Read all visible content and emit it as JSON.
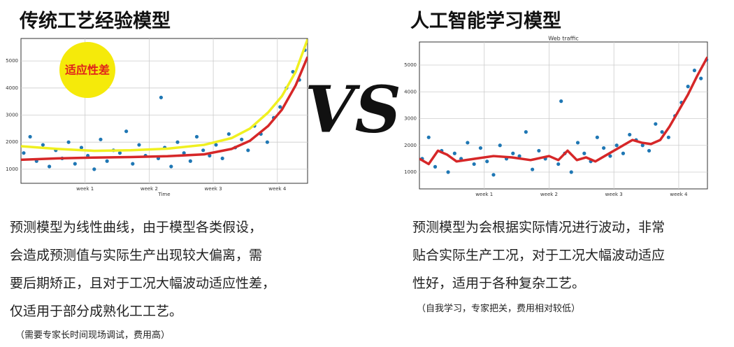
{
  "left": {
    "title": "传统工艺经验模型",
    "badge": "适应性差",
    "description": [
      "预测模型为线性曲线，由于模型各类假设，",
      "会造成预测值与实际生产出现较大偏离，需",
      "要后期矫正，且对于工况大幅波动适应性差，",
      "仅适用于部分成熟化工工艺。"
    ],
    "note": "（需要专家长时间现场调试，费用高）"
  },
  "vs": "VS",
  "right": {
    "title": "人工智能学习模型",
    "description": [
      "预测模型为会根据实际情况进行波动，非常",
      "贴合实际生产工况，对于工况大幅波动适应",
      "性好，适用于各种复杂工艺。"
    ],
    "note": "（自我学习，专家把关，费用相对较低）"
  },
  "chart_data": [
    {
      "type": "scatter",
      "xlabel": "Time",
      "grid": true,
      "xlim": [
        0,
        31.3
      ],
      "ylim": [
        480,
        5830
      ],
      "xticks": [
        {
          "value": 7,
          "label": "week 1"
        },
        {
          "value": 14,
          "label": "week 2"
        },
        {
          "value": 21,
          "label": "week 3"
        },
        {
          "value": 28,
          "label": "week 4"
        }
      ],
      "yticks": [
        1000,
        2000,
        3000,
        4000,
        5000
      ],
      "series": [
        {
          "mode": "markers",
          "color": "#1f77b4",
          "x": [
            0.3,
            1,
            1.7,
            2.4,
            3.1,
            3.8,
            4.5,
            5.2,
            5.9,
            6.6,
            7.3,
            8,
            8.7,
            9.4,
            10.1,
            10.8,
            11.5,
            12.2,
            12.9,
            13.6,
            15.3,
            15,
            15.7,
            16.4,
            17.1,
            17.8,
            18.5,
            19.2,
            19.9,
            20.6,
            21.3,
            22,
            22.7,
            23.4,
            24.1,
            24.8,
            25.5,
            26.2,
            26.9,
            27.6,
            28.3,
            29,
            29.7,
            30.4,
            31
          ],
          "values": [
            1600,
            2200,
            1300,
            1900,
            1100,
            1700,
            1400,
            2000,
            1200,
            1800,
            1500,
            1000,
            2100,
            1300,
            1700,
            1600,
            2400,
            1200,
            1900,
            1500,
            3650,
            1400,
            1800,
            1100,
            2000,
            1600,
            1300,
            2200,
            1700,
            1500,
            1900,
            1400,
            2300,
            1800,
            2100,
            1700,
            2600,
            2300,
            2000,
            2900,
            3300,
            4000,
            4600,
            4300,
            5400
          ]
        },
        {
          "mode": "line",
          "color": "#f0f020",
          "x": [
            0,
            4,
            8,
            12,
            16,
            20,
            23,
            25,
            27,
            28.5,
            30,
            31.3
          ],
          "values": [
            1850,
            1750,
            1680,
            1700,
            1760,
            1900,
            2150,
            2500,
            3100,
            3700,
            4600,
            5800
          ]
        },
        {
          "mode": "line",
          "color": "#d62728",
          "x": [
            0,
            4,
            8,
            12,
            16,
            20,
            23,
            25,
            27,
            28.5,
            30,
            31.3
          ],
          "values": [
            1350,
            1400,
            1430,
            1450,
            1480,
            1550,
            1750,
            2050,
            2600,
            3200,
            4100,
            5150
          ]
        }
      ]
    },
    {
      "type": "scatter",
      "title": "Web traffic",
      "grid": true,
      "xlim": [
        0,
        31.1
      ],
      "ylim": [
        373,
        5863
      ],
      "xticks": [
        {
          "value": 7,
          "label": "week 1"
        },
        {
          "value": 14,
          "label": "week 2"
        },
        {
          "value": 21,
          "label": "week 3"
        },
        {
          "value": 28,
          "label": "week 4"
        }
      ],
      "yticks": [
        1000,
        2000,
        3000,
        4000,
        5000
      ],
      "series": [
        {
          "mode": "markers",
          "color": "#1f77b4",
          "x": [
            0.3,
            1,
            1.7,
            2.4,
            3.1,
            3.8,
            4.5,
            5.2,
            5.9,
            6.6,
            7.3,
            8,
            8.7,
            9.4,
            10.1,
            10.8,
            11.5,
            12.2,
            12.9,
            13.6,
            15.3,
            15,
            15.7,
            16.4,
            17.1,
            17.8,
            18.5,
            19.2,
            19.9,
            20.6,
            21.3,
            22,
            22.7,
            23.4,
            24.1,
            24.8,
            25.5,
            26.2,
            26.9,
            27.6,
            28.3,
            29,
            29.7,
            30.4,
            31
          ],
          "values": [
            1500,
            2300,
            1200,
            1800,
            1000,
            1700,
            1500,
            2100,
            1300,
            1900,
            1400,
            900,
            2000,
            1500,
            1700,
            1600,
            2500,
            1100,
            1800,
            1500,
            3650,
            1300,
            1700,
            1000,
            2100,
            1700,
            1400,
            2300,
            1900,
            1600,
            2000,
            1700,
            2400,
            2200,
            2000,
            1800,
            2800,
            2500,
            2300,
            3100,
            3600,
            4200,
            4800,
            4500,
            5200
          ]
        },
        {
          "mode": "line",
          "color": "#d62728",
          "x": [
            0,
            1,
            2,
            3,
            4,
            6,
            8,
            10,
            12,
            14,
            15,
            16,
            17,
            18,
            19,
            20,
            22,
            23,
            24,
            25,
            26,
            27,
            28,
            29,
            30,
            31.1
          ],
          "values": [
            1500,
            1300,
            1800,
            1650,
            1400,
            1500,
            1600,
            1550,
            1450,
            1600,
            1450,
            1800,
            1450,
            1550,
            1400,
            1600,
            2000,
            2200,
            2100,
            2050,
            2200,
            2700,
            3300,
            3900,
            4600,
            5300
          ]
        }
      ]
    }
  ]
}
